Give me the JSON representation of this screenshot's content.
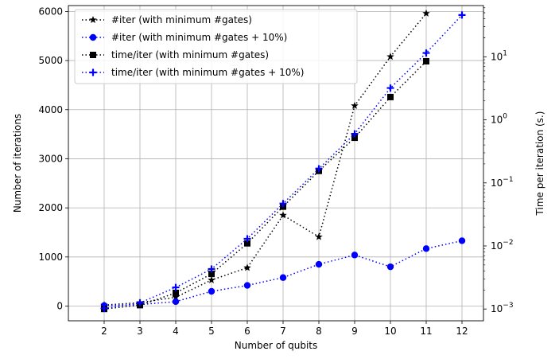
{
  "chart_data": {
    "type": "line",
    "xlabel": "Number of qubits",
    "ylabel": "Number of iterations",
    "y2label": "Time per iteration (s.)",
    "x_ticks": [
      2,
      3,
      4,
      5,
      6,
      7,
      8,
      9,
      10,
      11,
      12
    ],
    "xlim": [
      1,
      12.6
    ],
    "ylim": [
      -300,
      6120
    ],
    "y_ticks": [
      0,
      1000,
      2000,
      3000,
      4000,
      5000,
      6000
    ],
    "y2_scale": "log",
    "y2lim": [
      0.00065,
      65
    ],
    "y2_ticks": [
      {
        "value": 0.001,
        "base": "10",
        "exp": "−3"
      },
      {
        "value": 0.01,
        "base": "10",
        "exp": "−2"
      },
      {
        "value": 0.1,
        "base": "10",
        "exp": "−1"
      },
      {
        "value": 1,
        "base": "10",
        "exp": "0"
      },
      {
        "value": 10,
        "base": "10",
        "exp": "1"
      }
    ],
    "grid": true,
    "legend_position": "top-left",
    "series": [
      {
        "name": "#iter (with minimum #gates)",
        "axis": "left",
        "color": "#000000",
        "marker": "star",
        "x": [
          2,
          3,
          4,
          5,
          6,
          7,
          8,
          9,
          10,
          11
        ],
        "values": [
          20,
          70,
          180,
          530,
          780,
          1850,
          1410,
          4080,
          5080,
          5960
        ]
      },
      {
        "name": "#iter (with minimum #gates + 10%)",
        "axis": "left",
        "color": "#0000ff",
        "marker": "circle",
        "x": [
          2,
          3,
          4,
          5,
          6,
          7,
          8,
          9,
          10,
          11,
          12
        ],
        "values": [
          10,
          30,
          90,
          300,
          420,
          580,
          850,
          1040,
          800,
          1170,
          1330
        ]
      },
      {
        "name": "time/iter (with minimum #gates)",
        "axis": "right",
        "color": "#000000",
        "marker": "square",
        "x": [
          2,
          3,
          4,
          5,
          6,
          7,
          8,
          9,
          10,
          11
        ],
        "values": [
          0.001,
          0.00115,
          0.0018,
          0.0036,
          0.011,
          0.042,
          0.155,
          0.52,
          2.3,
          8.5
        ]
      },
      {
        "name": "time/iter (with minimum #gates + 10%)",
        "axis": "right",
        "color": "#0000ff",
        "marker": "plus",
        "x": [
          2,
          3,
          4,
          5,
          6,
          7,
          8,
          9,
          10,
          11,
          12
        ],
        "values": [
          0.00102,
          0.00125,
          0.0022,
          0.0043,
          0.013,
          0.047,
          0.168,
          0.6,
          3.2,
          11.5,
          46
        ]
      }
    ]
  }
}
